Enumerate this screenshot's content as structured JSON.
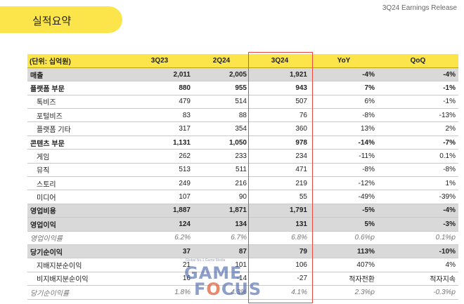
{
  "header": {
    "title": "실적요약",
    "release": "3Q24 Earnings Release"
  },
  "table": {
    "columns": [
      "(단위: 십억원)",
      "3Q23",
      "2Q24",
      "3Q24",
      "YoY",
      "QoQ"
    ],
    "rows": [
      {
        "label": "매출",
        "values": [
          "2,011",
          "2,005",
          "1,921",
          "-4%",
          "-4%"
        ]
      },
      {
        "label": "플랫폼 부문",
        "values": [
          "880",
          "955",
          "943",
          "7%",
          "-1%"
        ]
      },
      {
        "label": "톡비즈",
        "values": [
          "479",
          "514",
          "507",
          "6%",
          "-1%"
        ]
      },
      {
        "label": "포털비즈",
        "values": [
          "83",
          "88",
          "76",
          "-8%",
          "-13%"
        ]
      },
      {
        "label": "플랫폼 기타",
        "values": [
          "317",
          "354",
          "360",
          "13%",
          "2%"
        ]
      },
      {
        "label": "콘텐츠 부문",
        "values": [
          "1,131",
          "1,050",
          "978",
          "-14%",
          "-7%"
        ]
      },
      {
        "label": "게임",
        "values": [
          "262",
          "233",
          "234",
          "-11%",
          "0.1%"
        ]
      },
      {
        "label": "뮤직",
        "values": [
          "513",
          "511",
          "471",
          "-8%",
          "-8%"
        ]
      },
      {
        "label": "스토리",
        "values": [
          "249",
          "216",
          "219",
          "-12%",
          "1%"
        ]
      },
      {
        "label": "미디어",
        "values": [
          "107",
          "90",
          "55",
          "-49%",
          "-39%"
        ]
      },
      {
        "label": "영업비용",
        "values": [
          "1,887",
          "1,871",
          "1,791",
          "-5%",
          "-4%"
        ]
      },
      {
        "label": "영업이익",
        "values": [
          "124",
          "134",
          "131",
          "5%",
          "-3%"
        ]
      },
      {
        "label": "영업이익률",
        "values": [
          "6.2%",
          "6.7%",
          "6.8%",
          "0.6%p",
          "0.1%p"
        ]
      },
      {
        "label": "당기순이익",
        "values": [
          "37",
          "87",
          "79",
          "113%",
          "-10%"
        ]
      },
      {
        "label": "지배지분순이익",
        "values": [
          "21",
          "101",
          "106",
          "407%",
          "4%"
        ]
      },
      {
        "label": "비지배지분순이익",
        "values": [
          "16",
          "-14",
          "-27",
          "적자전환",
          "적자지속"
        ]
      },
      {
        "label": "당기순이익률",
        "values": [
          "1.8%",
          "4.3%",
          "4.1%",
          "2.3%p",
          "-0.3%p"
        ]
      }
    ]
  },
  "watermark": {
    "tagline": "Global No.1 Game Media",
    "line1": "GAME",
    "line2_pre": "F",
    "line2_o": "O",
    "line2_post": "CUS"
  }
}
